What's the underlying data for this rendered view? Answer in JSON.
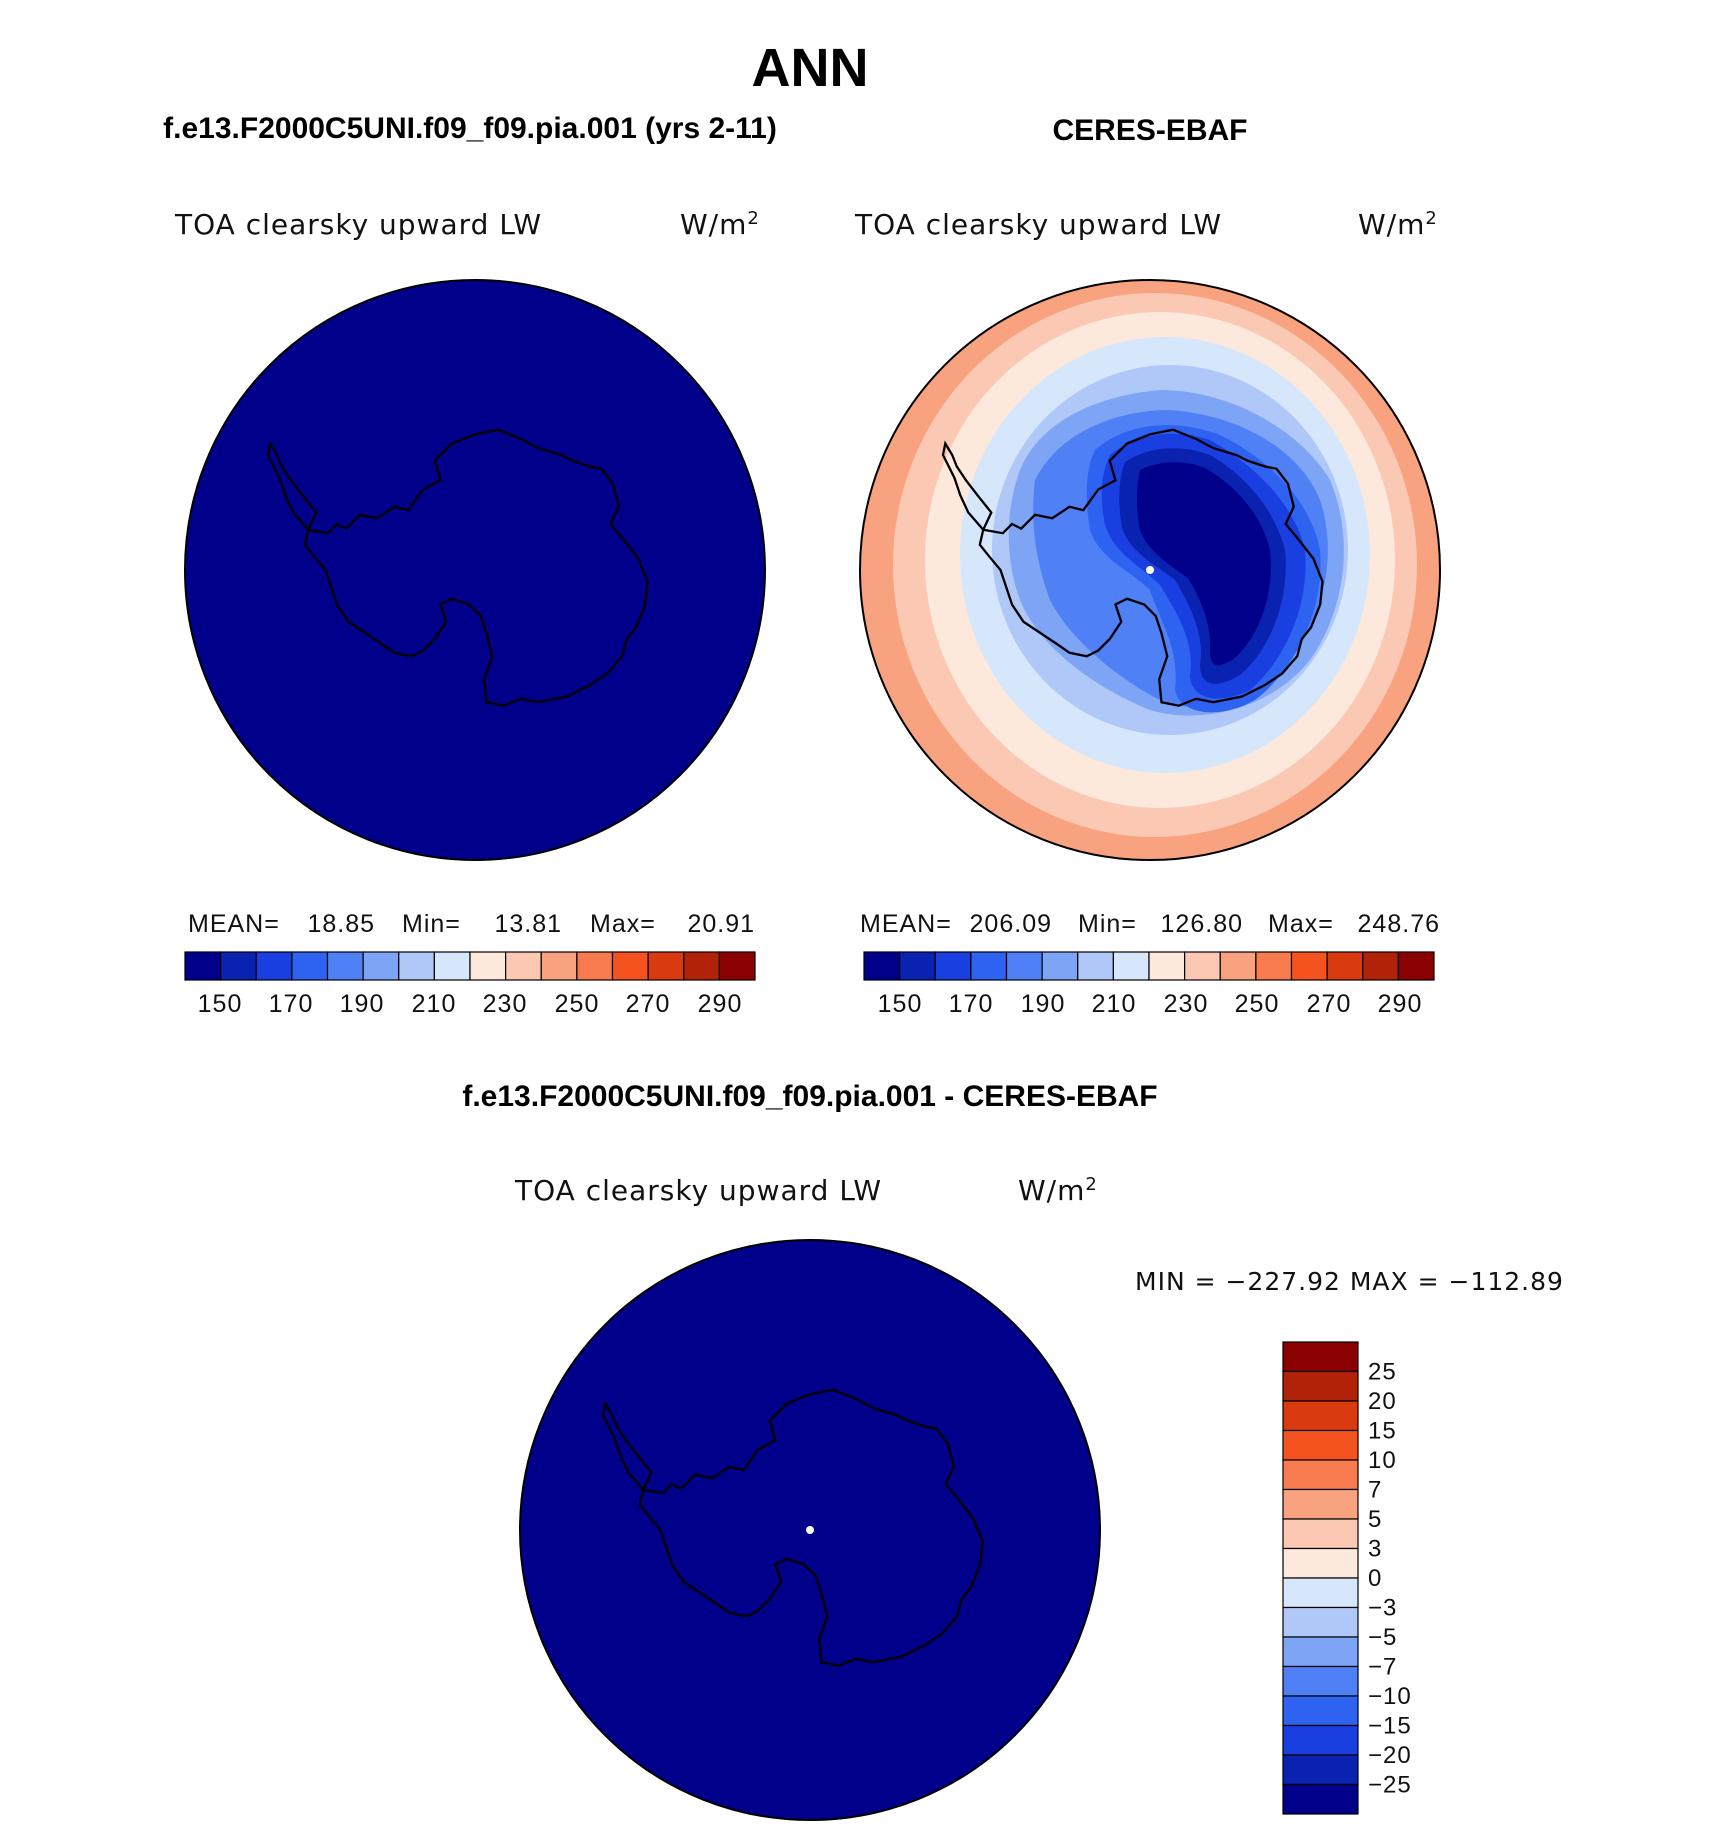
{
  "title": "ANN",
  "panels": [
    {
      "id": "model",
      "header": "f.e13.F2000C5UNI.f09_f09.pia.001 (yrs 2-11)",
      "variable": "TOA clearsky upward LW",
      "units_base": "W/m",
      "units_exp": "2",
      "stats": {
        "mean_label": "MEAN=",
        "mean_value": "18.85",
        "min_label": "Min=",
        "min_value": "13.81",
        "max_label": "Max=",
        "max_value": "20.91"
      },
      "colorbar_ticks": [
        "150",
        "170",
        "190",
        "210",
        "230",
        "250",
        "270",
        "290"
      ]
    },
    {
      "id": "obs",
      "header": "CERES-EBAF",
      "variable": "TOA clearsky upward LW",
      "units_base": "W/m",
      "units_exp": "2",
      "stats": {
        "mean_label": "MEAN=",
        "mean_value": "206.09",
        "min_label": "Min=",
        "min_value": "126.80",
        "max_label": "Max=",
        "max_value": "248.76"
      },
      "colorbar_ticks": [
        "150",
        "170",
        "190",
        "210",
        "230",
        "250",
        "270",
        "290"
      ]
    },
    {
      "id": "diff",
      "header": "f.e13.F2000C5UNI.f09_f09.pia.001 - CERES-EBAF",
      "variable": "TOA clearsky upward LW",
      "units_base": "W/m",
      "units_exp": "2",
      "minmax_text": "MIN = −227.92 MAX = −112.89",
      "colorbar_ticks": [
        "25",
        "20",
        "15",
        "10",
        "7",
        "5",
        "3",
        "0",
        "−3",
        "−5",
        "−7",
        "−10",
        "−15",
        "−20",
        "−25"
      ]
    }
  ],
  "colors": {
    "abs_scale": [
      "#00008b",
      "#0a22b0",
      "#1a3fe0",
      "#2e63f2",
      "#4f80f5",
      "#7ea5f5",
      "#b0c8f8",
      "#d6e7fc",
      "#fde8dc",
      "#fbc9b3",
      "#f8a27f",
      "#f87a4f",
      "#f4521f",
      "#d93a10",
      "#b22208",
      "#8b0000"
    ],
    "diff_scale": [
      "#8b0000",
      "#b22208",
      "#d93a10",
      "#f4521f",
      "#f87a4f",
      "#f8a27f",
      "#fbc9b3",
      "#fde8dc",
      "#d6e7fc",
      "#b0c8f8",
      "#7ea5f5",
      "#4f80f5",
      "#2e63f2",
      "#1a3fe0",
      "#0a22b0",
      "#00008b"
    ],
    "ocean_fill": "#00008b",
    "coastline": "#000000"
  }
}
